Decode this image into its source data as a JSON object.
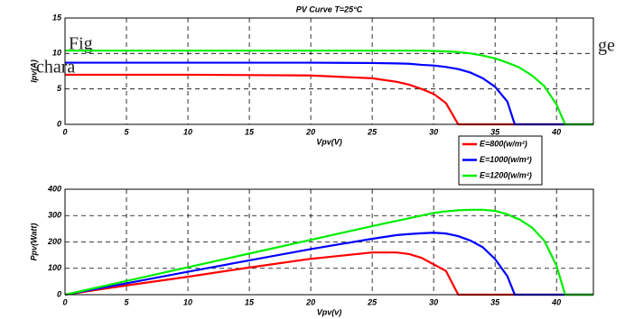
{
  "caption_fragments": [
    "Fig",
    "ge",
    "chara"
  ],
  "chart_data": [
    {
      "type": "line",
      "title": "PV Curve T=25°C",
      "x_label": "Vpv(V)",
      "y_label": "Ipv(A)",
      "x": [
        0,
        5,
        10,
        15,
        20,
        25,
        27,
        28,
        29,
        30,
        31,
        32,
        33,
        34,
        35,
        36,
        36.6,
        37,
        38,
        39,
        40,
        40.7,
        43
      ],
      "series": [
        {
          "name": "E=800(w/m²)",
          "color": "#ff0000",
          "values": [
            7,
            7,
            7,
            6.95,
            6.9,
            6.5,
            6.0,
            5.6,
            5.0,
            4.3,
            3.0,
            0,
            0,
            0,
            0,
            0,
            0,
            0,
            0,
            0,
            0,
            0,
            0
          ]
        },
        {
          "name": "E=1000(w/m²)",
          "color": "#0000ff",
          "values": [
            8.7,
            8.7,
            8.7,
            8.7,
            8.7,
            8.65,
            8.6,
            8.55,
            8.4,
            8.3,
            8.1,
            7.8,
            7.3,
            6.5,
            5.3,
            3.2,
            0,
            0,
            0,
            0,
            0,
            0,
            0
          ]
        },
        {
          "name": "E=1200(w/m²)",
          "color": "#00ee00",
          "values": [
            10.4,
            10.4,
            10.4,
            10.4,
            10.4,
            10.4,
            10.4,
            10.4,
            10.4,
            10.35,
            10.3,
            10.2,
            10.0,
            9.7,
            9.3,
            8.7,
            8.3,
            8.0,
            6.9,
            5.4,
            2.8,
            0,
            0
          ]
        }
      ],
      "xlim": [
        0,
        43
      ],
      "ylim": [
        0,
        15
      ],
      "xticks": [
        0,
        5,
        10,
        15,
        20,
        25,
        30,
        35,
        40
      ],
      "yticks": [
        0,
        5,
        10,
        15
      ],
      "grid": true
    },
    {
      "type": "line",
      "x_label": "Vpv(v)",
      "y_label": "Ppv(Watt)",
      "x": [
        0,
        5,
        10,
        15,
        20,
        25,
        27,
        28,
        29,
        30,
        31,
        32,
        33,
        34,
        35,
        36,
        36.6,
        37,
        38,
        39,
        40,
        40.7,
        43
      ],
      "series": [
        {
          "color": "#ff0000",
          "values": [
            0,
            35,
            68,
            103,
            136,
            160,
            160,
            154,
            140,
            115,
            90,
            0,
            0,
            0,
            0,
            0,
            0,
            0,
            0,
            0,
            0,
            0,
            0
          ]
        },
        {
          "color": "#0000ff",
          "values": [
            0,
            43,
            87,
            130,
            173,
            212,
            226,
            230,
            233,
            235,
            232,
            222,
            205,
            180,
            135,
            70,
            0,
            0,
            0,
            0,
            0,
            0,
            0
          ]
        },
        {
          "color": "#00ee00",
          "values": [
            0,
            52,
            104,
            156,
            208,
            260,
            280,
            290,
            300,
            310,
            316,
            320,
            322,
            322,
            318,
            305,
            292,
            285,
            255,
            205,
            110,
            0,
            0
          ]
        }
      ],
      "xlim": [
        0,
        43
      ],
      "ylim": [
        0,
        400
      ],
      "xticks": [
        0,
        5,
        10,
        15,
        20,
        25,
        30,
        35,
        40
      ],
      "yticks": [
        0,
        100,
        200,
        300,
        400
      ],
      "grid": true
    }
  ]
}
